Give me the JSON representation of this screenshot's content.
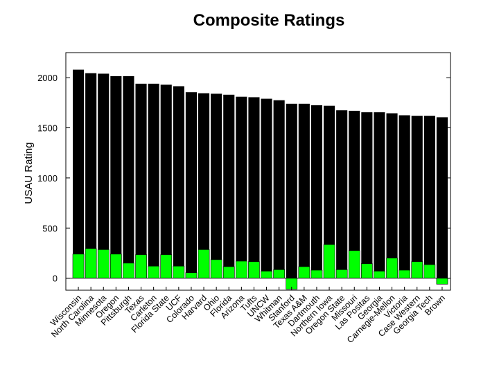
{
  "chart_data": {
    "type": "bar",
    "title": "Composite Ratings",
    "xlabel": "",
    "ylabel": "USAU Rating",
    "ylim": [
      -120,
      2250
    ],
    "yticks": [
      0,
      500,
      1000,
      1500,
      2000
    ],
    "grid": false,
    "categories": [
      "Wisconsin",
      "North Carolina",
      "Minnesota",
      "Oregon",
      "Pittsburgh",
      "Texas",
      "Carleton",
      "Florida State",
      "UCF",
      "Colorado",
      "Harvard",
      "Ohio",
      "Florida",
      "Arizona",
      "Tufts",
      "UNCW",
      "Whitman",
      "Stanford",
      "Texas A&M",
      "Dartmouth",
      "Northern Iowa",
      "Oregon State",
      "Missouri",
      "Las Positas",
      "Georgia",
      "Carnegie-Mellon",
      "Victoria",
      "Case Western",
      "Georgia Tech",
      "Brown"
    ],
    "series": [
      {
        "color": "#000000",
        "values": [
          2080,
          2045,
          2040,
          2015,
          2015,
          1940,
          1940,
          1930,
          1915,
          1855,
          1845,
          1840,
          1830,
          1810,
          1805,
          1790,
          1775,
          1740,
          1740,
          1725,
          1720,
          1675,
          1670,
          1655,
          1655,
          1645,
          1625,
          1620,
          1620,
          1605
        ]
      },
      {
        "color": "#00ff00",
        "values": [
          240,
          295,
          285,
          240,
          150,
          235,
          120,
          235,
          120,
          55,
          285,
          185,
          115,
          170,
          165,
          70,
          85,
          -110,
          115,
          80,
          335,
          85,
          275,
          145,
          70,
          200,
          80,
          165,
          135,
          -60
        ]
      }
    ]
  }
}
